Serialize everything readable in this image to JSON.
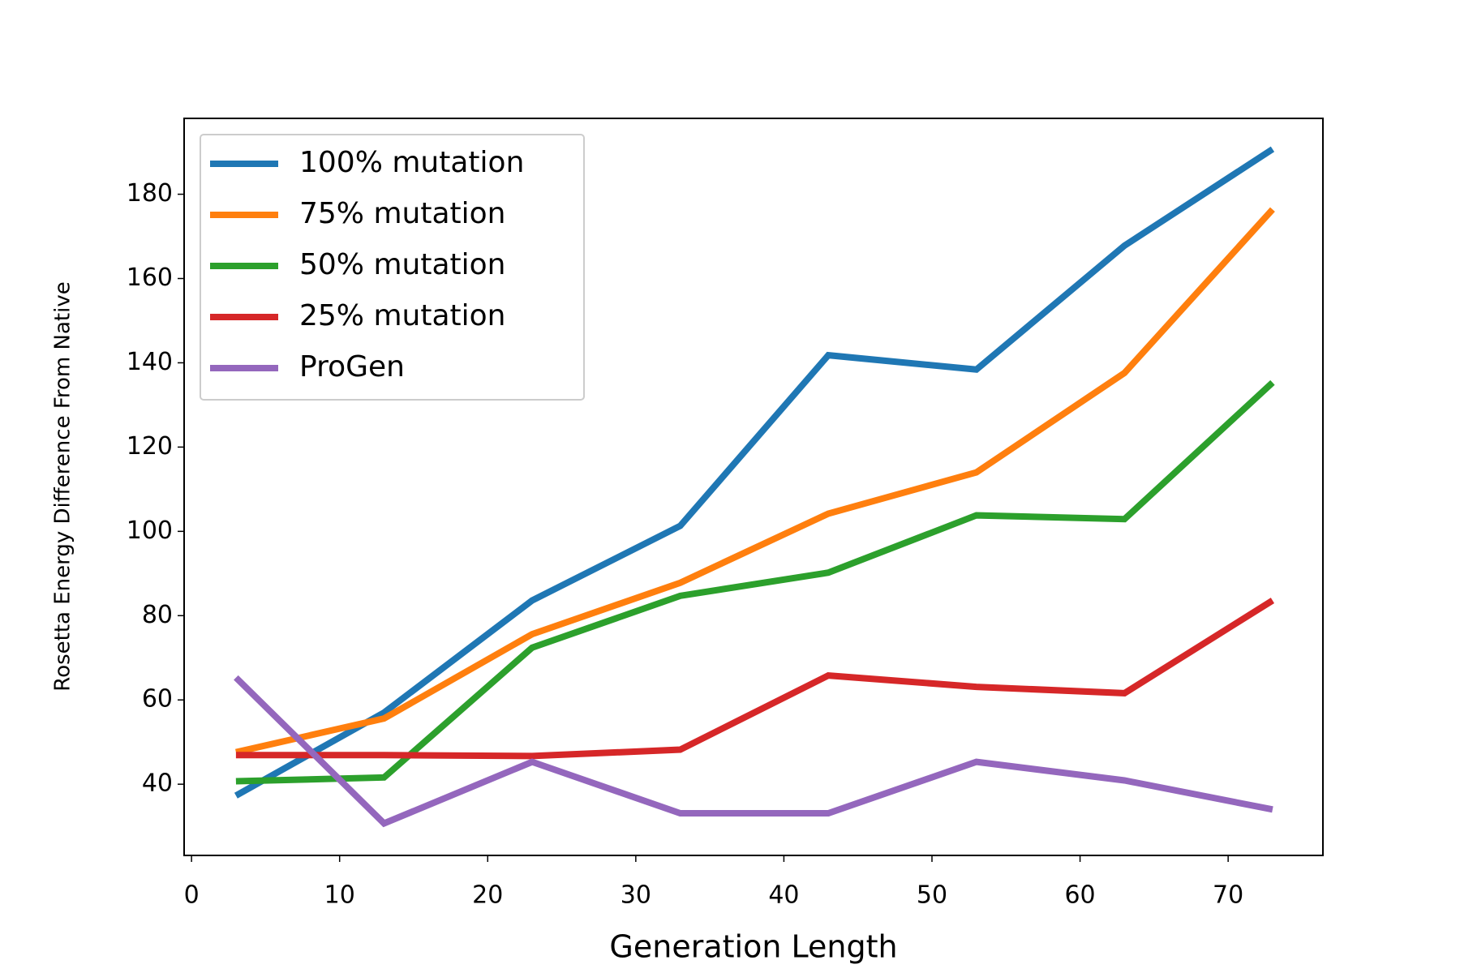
{
  "chart_data": {
    "type": "line",
    "x_label": "Generation Length",
    "y_label": "Rosetta Energy Difference From Native",
    "x": [
      3,
      13,
      23,
      33,
      43,
      53,
      63,
      73
    ],
    "series": [
      {
        "name": "100% mutation",
        "color": "#1f77b4",
        "values": [
          37.3,
          57,
          83.6,
          101.3,
          141.8,
          138.4,
          167.8,
          190.7
        ]
      },
      {
        "name": "75% mutation",
        "color": "#ff7f0e",
        "values": [
          47.6,
          55.6,
          75.6,
          87.8,
          104.2,
          114,
          137.6,
          176.4
        ]
      },
      {
        "name": "50% mutation",
        "color": "#2ca02c",
        "values": [
          40.7,
          41.6,
          72.4,
          84.7,
          90.2,
          103.8,
          102.9,
          135.3
        ]
      },
      {
        "name": "25% mutation",
        "color": "#d62728",
        "values": [
          46.9,
          46.9,
          46.7,
          48.2,
          65.8,
          63.1,
          61.6,
          83.6
        ]
      },
      {
        "name": "ProGen",
        "color": "#9467bd",
        "values": [
          65.3,
          30.7,
          45.3,
          33.1,
          33.1,
          45.3,
          40.9,
          34
        ]
      }
    ],
    "xlim": [
      -0.5,
      76.4
    ],
    "xticks": [
      0,
      10,
      20,
      30,
      40,
      50,
      60,
      70
    ],
    "ylim": [
      23.1,
      198
    ],
    "yticks": [
      40,
      60,
      80,
      100,
      120,
      140,
      160,
      180
    ],
    "legend": "upper left"
  }
}
